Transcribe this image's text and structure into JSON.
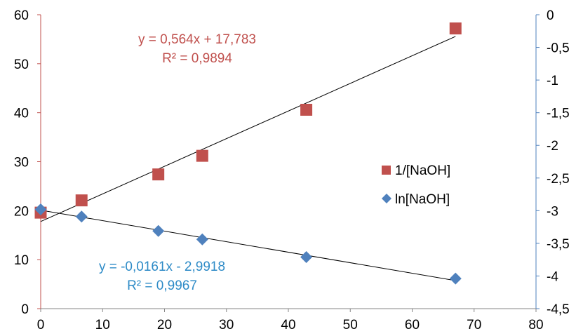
{
  "chart_data": {
    "type": "scatter",
    "x": {
      "ticks": [
        0,
        10,
        20,
        30,
        40,
        50,
        60,
        70,
        80
      ],
      "range": [
        0,
        80
      ]
    },
    "y_left": {
      "ticks": [
        0,
        10,
        20,
        30,
        40,
        50,
        60
      ],
      "range": [
        0,
        60
      ],
      "tick_labels": [
        "0",
        "10",
        "20",
        "30",
        "40",
        "50",
        "60"
      ]
    },
    "y_right": {
      "ticks": [
        0,
        -0.5,
        -1,
        -1.5,
        -2,
        -2.5,
        -3,
        -3.5,
        -4,
        -4.5
      ],
      "range": [
        -4.5,
        0
      ],
      "tick_labels": [
        "0",
        "-0,5",
        "-1",
        "-1,5",
        "-2",
        "-2,5",
        "-3",
        "-3,5",
        "-4",
        "-4,5"
      ]
    },
    "series": [
      {
        "name": "1/[NaOH]",
        "axis": "left",
        "marker": "square",
        "color": "#c0504d",
        "points": [
          [
            0,
            19.6
          ],
          [
            6.6,
            22.1
          ],
          [
            19,
            27.4
          ],
          [
            26.1,
            31.2
          ],
          [
            42.9,
            40.6
          ],
          [
            67,
            57.2
          ]
        ],
        "trendline": {
          "slope": 0.564,
          "intercept": 17.783,
          "x_range": [
            0,
            67
          ]
        },
        "equation": "y = 0,564x + 17,783",
        "r2": "R² = 0,9894"
      },
      {
        "name": "ln[NaOH]",
        "axis": "right",
        "marker": "diamond",
        "color": "#4f81bd",
        "points": [
          [
            0,
            -2.98
          ],
          [
            6.6,
            -3.09
          ],
          [
            19,
            -3.31
          ],
          [
            26.1,
            -3.44
          ],
          [
            42.9,
            -3.71
          ],
          [
            67,
            -4.04
          ]
        ],
        "trendline": {
          "slope": -0.0161,
          "intercept": -2.9918,
          "x_range": [
            0,
            67
          ]
        },
        "equation": "y = -0,0161x - 2,9918",
        "r2": "R² = 0,9967"
      }
    ],
    "legend_position": "right",
    "grid": false
  }
}
